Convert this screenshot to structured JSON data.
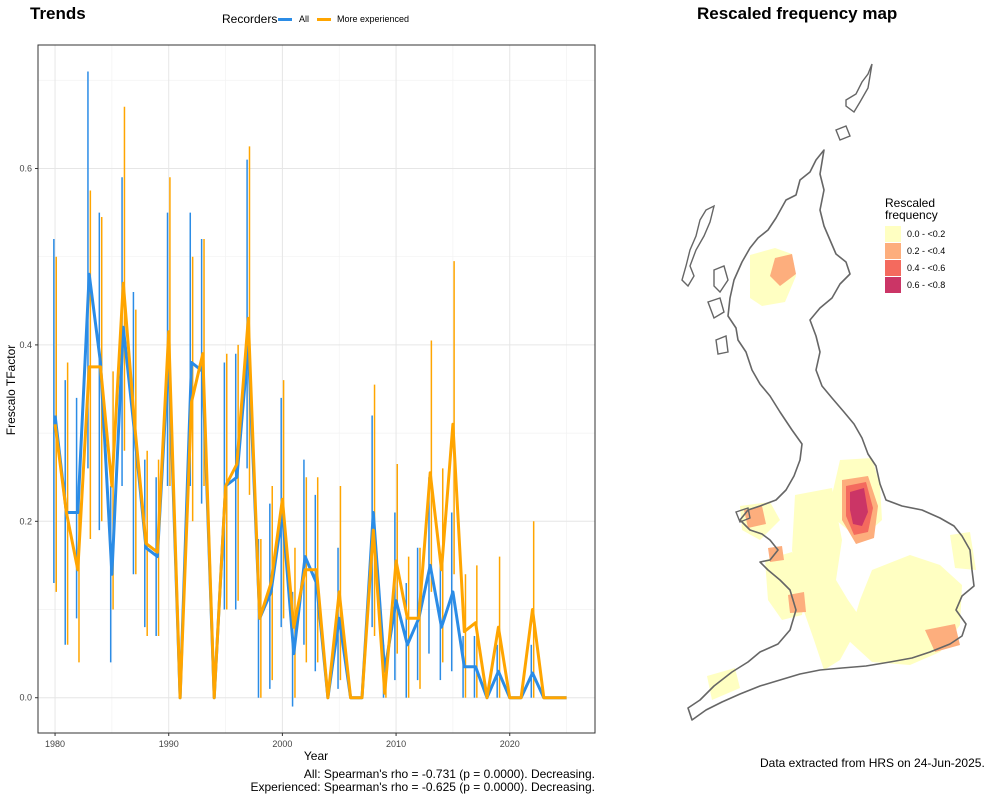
{
  "left_panel": {
    "title": "Trends",
    "footer_all": "All: Spearman's rho = -0.731 (p = 0.0000). Decreasing.",
    "footer_experienced": "Experienced: Spearman's rho = -0.625 (p = 0.0000). Decreasing."
  },
  "right_panel": {
    "title": "Rescaled frequency map",
    "legend_title_line1": "Rescaled",
    "legend_title_line2": "frequency",
    "legend_items": [
      {
        "label": "0.0 - <0.2",
        "color": "#ffffc2"
      },
      {
        "label": "0.2 - <0.4",
        "color": "#fdae7d"
      },
      {
        "label": "0.4 - <0.6",
        "color": "#f46a5e"
      },
      {
        "label": "0.6 - <0.8",
        "color": "#cb3566"
      }
    ],
    "footer": "Data extracted from HRS on 24-Jun-2025."
  },
  "colors": {
    "all": "#2b8ce6",
    "experienced": "#ffa500",
    "outline": "#666666"
  },
  "chart_data": {
    "type": "line",
    "title": "Trends",
    "xlabel": "Year",
    "ylabel": "Frescalo TFactor",
    "xlim": [
      1978.5,
      2027.5
    ],
    "ylim": [
      -0.04,
      0.74
    ],
    "xticks": [
      "1980",
      "1990",
      "2000",
      "2010",
      "2020"
    ],
    "yticks": [
      "0.0",
      "0.2",
      "0.4",
      "0.6"
    ],
    "legend": {
      "title": "Recorders",
      "placement": "top"
    },
    "grid": true,
    "series": [
      {
        "name": "All",
        "years": [
          1980,
          1981,
          1982,
          1983,
          1984,
          1985,
          1986,
          1987,
          1988,
          1989,
          1990,
          1991,
          1992,
          1993,
          1994,
          1995,
          1996,
          1997,
          1998,
          1999,
          2000,
          2001,
          2002,
          2003,
          2004,
          2005,
          2006,
          2007,
          2008,
          2009,
          2010,
          2011,
          2012,
          2013,
          2014,
          2015,
          2016,
          2017,
          2018,
          2019,
          2020,
          2021,
          2022,
          2023,
          2024,
          2025
        ],
        "values": [
          0.32,
          0.21,
          0.21,
          0.48,
          0.38,
          0.14,
          0.42,
          0.3,
          0.17,
          0.16,
          0.39,
          0.0,
          0.38,
          0.37,
          0.0,
          0.24,
          0.25,
          0.4,
          0.09,
          0.12,
          0.21,
          0.05,
          0.16,
          0.13,
          0.0,
          0.09,
          0.0,
          0.0,
          0.21,
          0.03,
          0.11,
          0.06,
          0.09,
          0.15,
          0.08,
          0.12,
          0.035,
          0.035,
          0.0,
          0.03,
          0.0,
          0.0,
          0.028,
          0.0,
          0.0,
          0.0
        ],
        "lower": [
          0.13,
          0.06,
          0.09,
          0.26,
          0.19,
          0.04,
          0.24,
          0.14,
          0.08,
          0.07,
          0.24,
          0.0,
          0.24,
          0.22,
          0.0,
          0.1,
          0.1,
          0.26,
          0.0,
          0.01,
          0.08,
          -0.01,
          0.06,
          0.03,
          0.0,
          0.01,
          0.0,
          0.0,
          0.08,
          0.0,
          0.02,
          0.0,
          0.02,
          0.05,
          0.02,
          0.03,
          0.0,
          0.0,
          0.0,
          0.0,
          0.0,
          0.0,
          0.0,
          0.0,
          0.0,
          0.0
        ],
        "upper": [
          0.52,
          0.36,
          0.34,
          0.71,
          0.55,
          0.24,
          0.59,
          0.46,
          0.27,
          0.25,
          0.55,
          0.0,
          0.55,
          0.52,
          0.0,
          0.38,
          0.39,
          0.61,
          0.18,
          0.22,
          0.34,
          0.12,
          0.27,
          0.23,
          0.0,
          0.17,
          0.0,
          0.0,
          0.32,
          0.06,
          0.21,
          0.13,
          0.17,
          0.25,
          0.15,
          0.21,
          0.07,
          0.07,
          0.0,
          0.06,
          0.0,
          0.0,
          0.06,
          0.0,
          0.0,
          0.0
        ]
      },
      {
        "name": "More experienced",
        "years": [
          1980,
          1981,
          1982,
          1983,
          1984,
          1985,
          1986,
          1987,
          1988,
          1989,
          1990,
          1991,
          1992,
          1993,
          1994,
          1995,
          1996,
          1997,
          1998,
          1999,
          2000,
          2001,
          2002,
          2003,
          2004,
          2005,
          2006,
          2007,
          2008,
          2009,
          2010,
          2011,
          2012,
          2013,
          2014,
          2015,
          2016,
          2017,
          2018,
          2019,
          2020,
          2021,
          2022,
          2023,
          2024,
          2025
        ],
        "values": [
          0.31,
          0.21,
          0.145,
          0.375,
          0.375,
          0.24,
          0.47,
          0.31,
          0.175,
          0.165,
          0.415,
          0.0,
          0.335,
          0.39,
          0.0,
          0.24,
          0.265,
          0.43,
          0.09,
          0.13,
          0.225,
          0.08,
          0.145,
          0.145,
          0.0,
          0.12,
          0.0,
          0.0,
          0.19,
          0.005,
          0.155,
          0.09,
          0.09,
          0.255,
          0.145,
          0.31,
          0.075,
          0.085,
          0.0,
          0.08,
          0.0,
          0.0,
          0.1,
          0.0,
          0.0,
          0.0
        ],
        "lower": [
          0.12,
          0.06,
          0.04,
          0.18,
          0.2,
          0.1,
          0.28,
          0.14,
          0.07,
          0.07,
          0.24,
          0.0,
          0.2,
          0.24,
          0.0,
          0.1,
          0.11,
          0.23,
          0.0,
          0.02,
          0.09,
          0.0,
          0.04,
          0.04,
          0.0,
          0.02,
          0.0,
          0.0,
          0.07,
          0.0,
          0.05,
          0.0,
          0.01,
          0.12,
          0.04,
          0.14,
          0.0,
          0.0,
          0.0,
          0.0,
          0.0,
          0.0,
          0.0,
          0.0,
          0.0,
          0.0
        ],
        "upper": [
          0.5,
          0.38,
          0.25,
          0.575,
          0.545,
          0.37,
          0.67,
          0.44,
          0.28,
          0.27,
          0.59,
          0.0,
          0.5,
          0.52,
          0.0,
          0.39,
          0.4,
          0.625,
          0.18,
          0.24,
          0.36,
          0.17,
          0.25,
          0.25,
          0.0,
          0.24,
          0.0,
          0.0,
          0.355,
          0.02,
          0.265,
          0.16,
          0.17,
          0.405,
          0.26,
          0.495,
          0.14,
          0.15,
          0.0,
          0.16,
          0.0,
          0.0,
          0.2,
          0.0,
          0.0,
          0.0
        ]
      }
    ]
  }
}
